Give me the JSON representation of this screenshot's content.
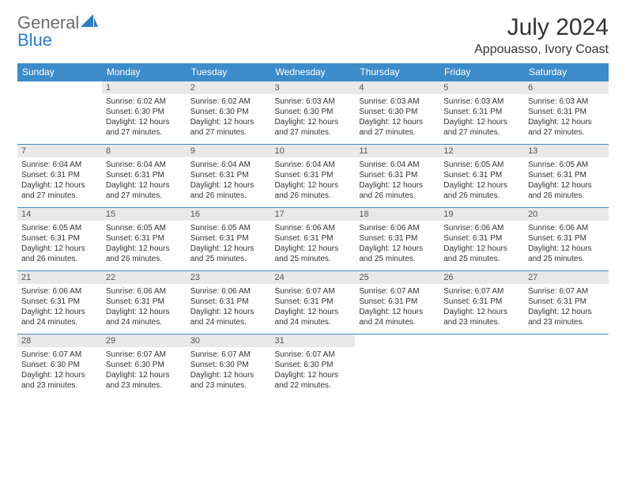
{
  "brand": {
    "line1": "General",
    "line2": "Blue"
  },
  "title": "July 2024",
  "location": "Appouasso, Ivory Coast",
  "colors": {
    "header_bg": "#3d8cc9",
    "header_text": "#ffffff",
    "daynum_bg": "#e9e9e9",
    "border": "#3d8cc9",
    "text": "#333333",
    "brand_gray": "#6b6b6b",
    "brand_blue": "#2d7dc2"
  },
  "dayHeaders": [
    "Sunday",
    "Monday",
    "Tuesday",
    "Wednesday",
    "Thursday",
    "Friday",
    "Saturday"
  ],
  "startDow": 1,
  "daysInMonth": 31,
  "days": {
    "1": {
      "sunrise": "6:02 AM",
      "sunset": "6:30 PM",
      "daylight": "12 hours and 27 minutes."
    },
    "2": {
      "sunrise": "6:02 AM",
      "sunset": "6:30 PM",
      "daylight": "12 hours and 27 minutes."
    },
    "3": {
      "sunrise": "6:03 AM",
      "sunset": "6:30 PM",
      "daylight": "12 hours and 27 minutes."
    },
    "4": {
      "sunrise": "6:03 AM",
      "sunset": "6:30 PM",
      "daylight": "12 hours and 27 minutes."
    },
    "5": {
      "sunrise": "6:03 AM",
      "sunset": "6:31 PM",
      "daylight": "12 hours and 27 minutes."
    },
    "6": {
      "sunrise": "6:03 AM",
      "sunset": "6:31 PM",
      "daylight": "12 hours and 27 minutes."
    },
    "7": {
      "sunrise": "6:04 AM",
      "sunset": "6:31 PM",
      "daylight": "12 hours and 27 minutes."
    },
    "8": {
      "sunrise": "6:04 AM",
      "sunset": "6:31 PM",
      "daylight": "12 hours and 27 minutes."
    },
    "9": {
      "sunrise": "6:04 AM",
      "sunset": "6:31 PM",
      "daylight": "12 hours and 26 minutes."
    },
    "10": {
      "sunrise": "6:04 AM",
      "sunset": "6:31 PM",
      "daylight": "12 hours and 26 minutes."
    },
    "11": {
      "sunrise": "6:04 AM",
      "sunset": "6:31 PM",
      "daylight": "12 hours and 26 minutes."
    },
    "12": {
      "sunrise": "6:05 AM",
      "sunset": "6:31 PM",
      "daylight": "12 hours and 26 minutes."
    },
    "13": {
      "sunrise": "6:05 AM",
      "sunset": "6:31 PM",
      "daylight": "12 hours and 26 minutes."
    },
    "14": {
      "sunrise": "6:05 AM",
      "sunset": "6:31 PM",
      "daylight": "12 hours and 26 minutes."
    },
    "15": {
      "sunrise": "6:05 AM",
      "sunset": "6:31 PM",
      "daylight": "12 hours and 26 minutes."
    },
    "16": {
      "sunrise": "6:05 AM",
      "sunset": "6:31 PM",
      "daylight": "12 hours and 25 minutes."
    },
    "17": {
      "sunrise": "6:06 AM",
      "sunset": "6:31 PM",
      "daylight": "12 hours and 25 minutes."
    },
    "18": {
      "sunrise": "6:06 AM",
      "sunset": "6:31 PM",
      "daylight": "12 hours and 25 minutes."
    },
    "19": {
      "sunrise": "6:06 AM",
      "sunset": "6:31 PM",
      "daylight": "12 hours and 25 minutes."
    },
    "20": {
      "sunrise": "6:06 AM",
      "sunset": "6:31 PM",
      "daylight": "12 hours and 25 minutes."
    },
    "21": {
      "sunrise": "6:06 AM",
      "sunset": "6:31 PM",
      "daylight": "12 hours and 24 minutes."
    },
    "22": {
      "sunrise": "6:06 AM",
      "sunset": "6:31 PM",
      "daylight": "12 hours and 24 minutes."
    },
    "23": {
      "sunrise": "6:06 AM",
      "sunset": "6:31 PM",
      "daylight": "12 hours and 24 minutes."
    },
    "24": {
      "sunrise": "6:07 AM",
      "sunset": "6:31 PM",
      "daylight": "12 hours and 24 minutes."
    },
    "25": {
      "sunrise": "6:07 AM",
      "sunset": "6:31 PM",
      "daylight": "12 hours and 24 minutes."
    },
    "26": {
      "sunrise": "6:07 AM",
      "sunset": "6:31 PM",
      "daylight": "12 hours and 23 minutes."
    },
    "27": {
      "sunrise": "6:07 AM",
      "sunset": "6:31 PM",
      "daylight": "12 hours and 23 minutes."
    },
    "28": {
      "sunrise": "6:07 AM",
      "sunset": "6:30 PM",
      "daylight": "12 hours and 23 minutes."
    },
    "29": {
      "sunrise": "6:07 AM",
      "sunset": "6:30 PM",
      "daylight": "12 hours and 23 minutes."
    },
    "30": {
      "sunrise": "6:07 AM",
      "sunset": "6:30 PM",
      "daylight": "12 hours and 23 minutes."
    },
    "31": {
      "sunrise": "6:07 AM",
      "sunset": "6:30 PM",
      "daylight": "12 hours and 22 minutes."
    }
  },
  "labels": {
    "sunrise": "Sunrise:",
    "sunset": "Sunset:",
    "daylight": "Daylight:"
  }
}
